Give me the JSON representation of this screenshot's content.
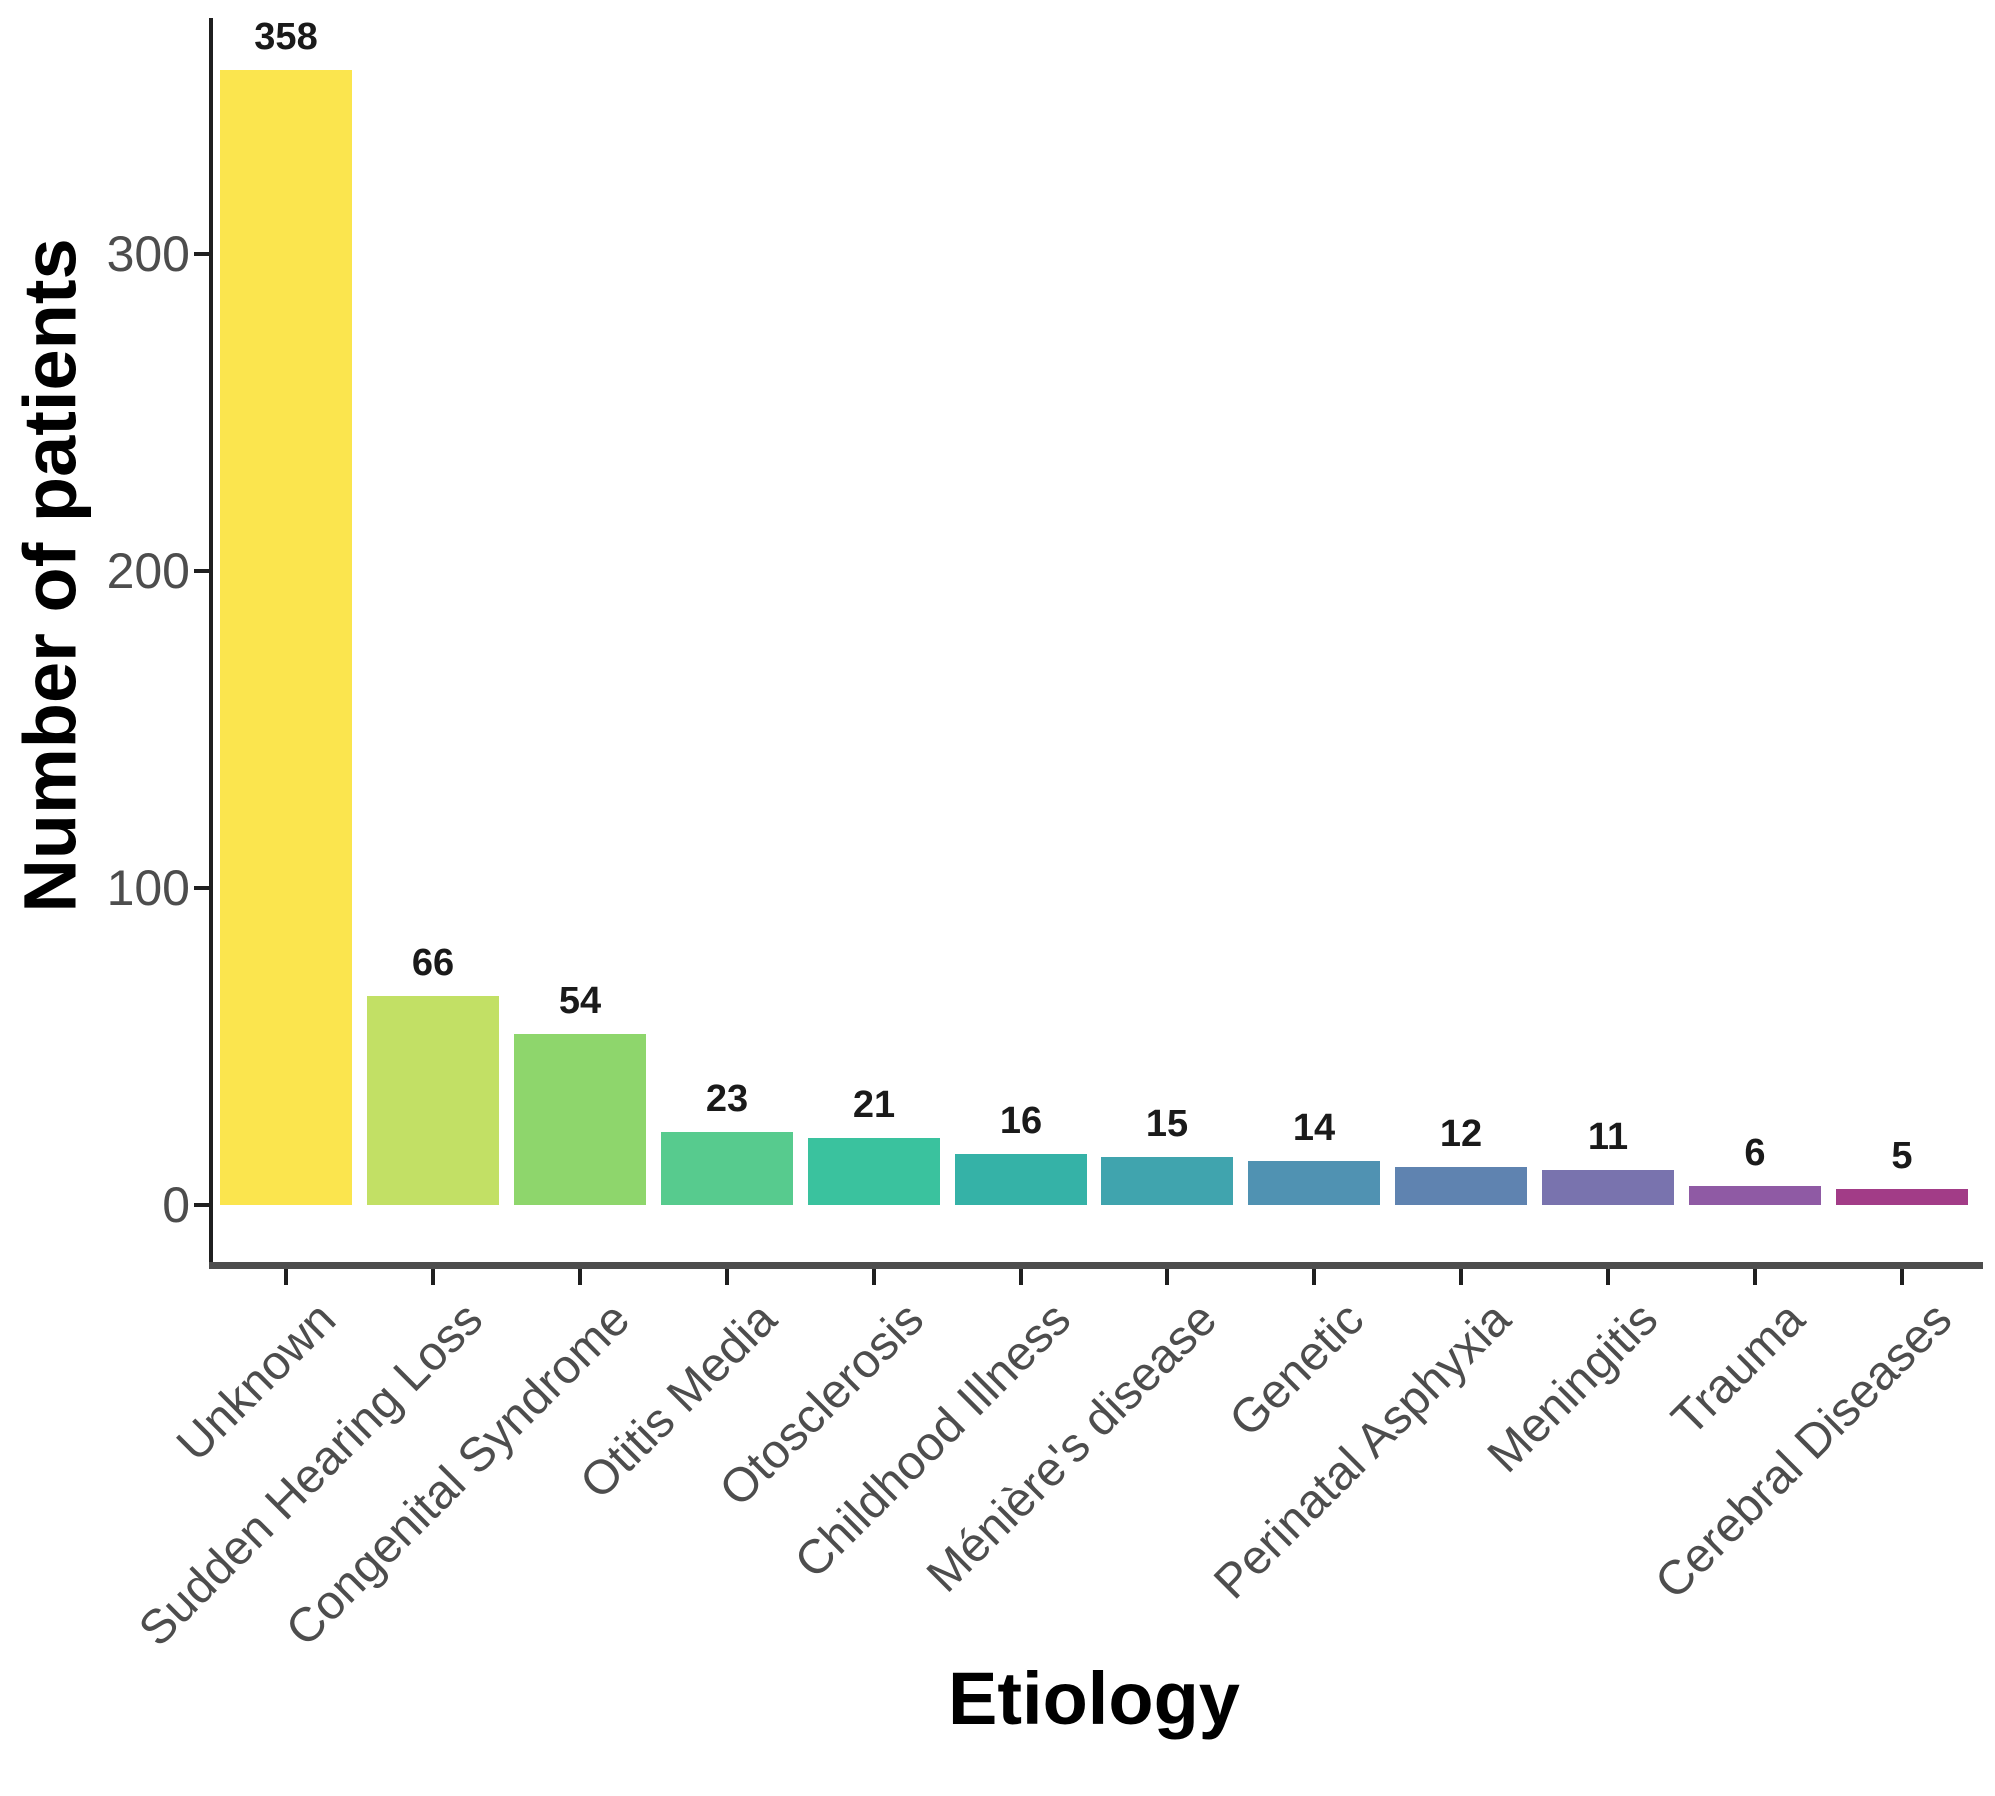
{
  "chart_data": {
    "type": "bar",
    "title": "",
    "xlabel": "Etiology",
    "ylabel": "Number of patients",
    "categories": [
      "Unknown",
      "Sudden Hearing Loss",
      "Congenital Syndrome",
      "Otitis Media",
      "Otosclerosis",
      "Childhood Illness",
      "Ménière's disease",
      "Genetic",
      "Perinatal Asphyxia",
      "Meningitis",
      "Trauma",
      "Cerebral Diseases"
    ],
    "values": [
      358,
      66,
      54,
      23,
      21,
      16,
      15,
      14,
      12,
      11,
      6,
      5
    ],
    "bar_colors": [
      "#FBE54E",
      "#C2E065",
      "#8ED66C",
      "#57CB8E",
      "#3AC29E",
      "#35B2A7",
      "#40A4AE",
      "#5092B2",
      "#5F83B0",
      "#7973AE",
      "#8F5AA4",
      "#A23C87"
    ],
    "value_labels_shown": true,
    "yticks": [
      0,
      100,
      200,
      300
    ],
    "ylim": [
      0,
      375
    ],
    "grid": "off",
    "legend": "none",
    "bar_label_color": "#1a1a1a",
    "tick_label_color": "#4d4d4d",
    "axis_title_color": "#000000"
  }
}
